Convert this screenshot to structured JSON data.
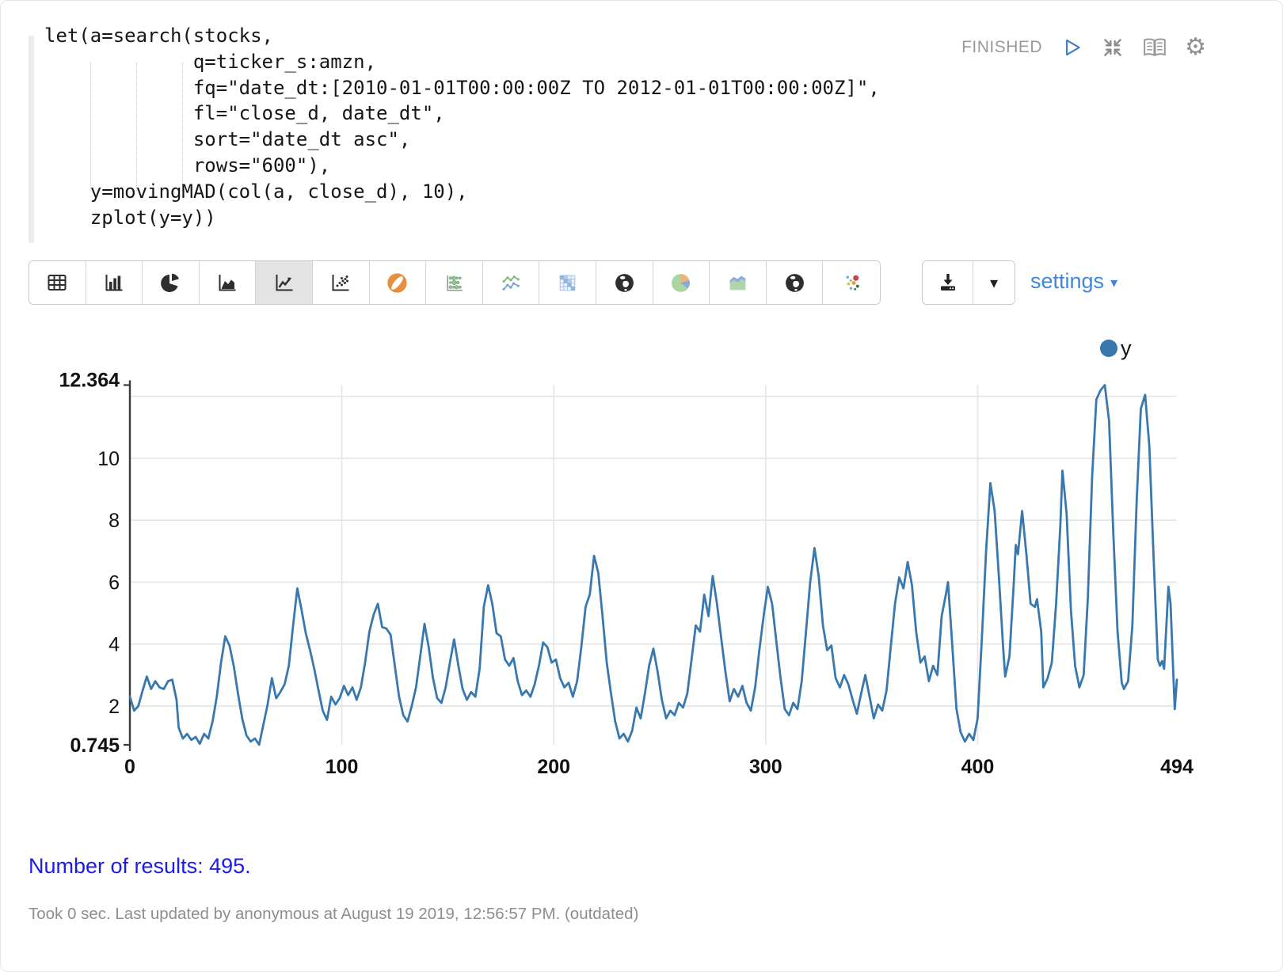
{
  "paragraph": {
    "code": "let(a=search(stocks,\n             q=ticker_s:amzn,\n             fq=\"date_dt:[2010-01-01T00:00:00Z TO 2012-01-01T00:00:00Z]\",\n             fl=\"close_d, date_dt\",\n             sort=\"date_dt asc\",\n             rows=\"600\"),\n    y=movingMAD(col(a, close_d), 10),\n    zplot(y=y))",
    "status": "FINISHED",
    "control_icons": [
      "play-icon",
      "compress-icon",
      "book-icon",
      "gear-icon"
    ]
  },
  "toolbar": {
    "chart_types": [
      {
        "name": "table",
        "selected": false
      },
      {
        "name": "bar-chart",
        "selected": false
      },
      {
        "name": "pie-chart",
        "selected": false
      },
      {
        "name": "area-chart",
        "selected": false
      },
      {
        "name": "line-chart",
        "selected": true
      },
      {
        "name": "scatter-chart",
        "selected": false
      },
      {
        "name": "globe-orange",
        "selected": false
      },
      {
        "name": "bubble-matrix",
        "selected": false
      },
      {
        "name": "multi-line",
        "selected": false
      },
      {
        "name": "heatmap",
        "selected": false
      },
      {
        "name": "globe-black",
        "selected": false
      },
      {
        "name": "pie-color",
        "selected": false
      },
      {
        "name": "area-color",
        "selected": false
      },
      {
        "name": "globe-black-2",
        "selected": false
      },
      {
        "name": "scatter-color",
        "selected": false
      }
    ],
    "download_icon": "download-icon",
    "download_caret": "▾",
    "settings_label": "settings",
    "settings_caret": "▾"
  },
  "chart_data": {
    "type": "line",
    "title": "",
    "xlabel": "",
    "ylabel": "",
    "xlim": [
      0,
      494
    ],
    "ylim": [
      0.745,
      12.364
    ],
    "x_gridlines": [
      100,
      200,
      300,
      400
    ],
    "y_gridlines": [
      2,
      4,
      6,
      8,
      10,
      12
    ],
    "xticks": [
      {
        "v": 0,
        "label": "0",
        "bold": true
      },
      {
        "v": 100,
        "label": "100",
        "bold": true
      },
      {
        "v": 200,
        "label": "200",
        "bold": true
      },
      {
        "v": 300,
        "label": "300",
        "bold": true
      },
      {
        "v": 400,
        "label": "400",
        "bold": true
      },
      {
        "v": 494,
        "label": "494",
        "bold": true
      }
    ],
    "yticks": [
      {
        "v": 12.364,
        "label": "12.364",
        "bold": true,
        "dy": 2
      },
      {
        "v": 10,
        "label": "10",
        "bold": false,
        "dy": 9
      },
      {
        "v": 8,
        "label": "8",
        "bold": false,
        "dy": 9
      },
      {
        "v": 6,
        "label": "6",
        "bold": false,
        "dy": 9
      },
      {
        "v": 4,
        "label": "4",
        "bold": false,
        "dy": 9
      },
      {
        "v": 2,
        "label": "2",
        "bold": false,
        "dy": 9
      },
      {
        "v": 0.745,
        "label": "0.745",
        "bold": true,
        "dy": 9
      }
    ],
    "legend": {
      "label": "y",
      "position": "top-right"
    },
    "series": [
      {
        "name": "y",
        "color": "#3878af",
        "points": [
          [
            0,
            2.3
          ],
          [
            2,
            1.85
          ],
          [
            4,
            2.0
          ],
          [
            6,
            2.5
          ],
          [
            8,
            2.95
          ],
          [
            10,
            2.55
          ],
          [
            12,
            2.8
          ],
          [
            14,
            2.6
          ],
          [
            16,
            2.55
          ],
          [
            18,
            2.8
          ],
          [
            20,
            2.85
          ],
          [
            22,
            2.2
          ],
          [
            23,
            1.3
          ],
          [
            25,
            0.95
          ],
          [
            27,
            1.1
          ],
          [
            29,
            0.9
          ],
          [
            31,
            1.0
          ],
          [
            33,
            0.78
          ],
          [
            35,
            1.1
          ],
          [
            37,
            0.95
          ],
          [
            39,
            1.5
          ],
          [
            41,
            2.3
          ],
          [
            43,
            3.4
          ],
          [
            45,
            4.25
          ],
          [
            47,
            3.95
          ],
          [
            49,
            3.3
          ],
          [
            51,
            2.4
          ],
          [
            53,
            1.6
          ],
          [
            55,
            1.05
          ],
          [
            57,
            0.85
          ],
          [
            59,
            0.95
          ],
          [
            61,
            0.75
          ],
          [
            63,
            1.4
          ],
          [
            65,
            2.05
          ],
          [
            67,
            2.9
          ],
          [
            69,
            2.25
          ],
          [
            71,
            2.45
          ],
          [
            73,
            2.7
          ],
          [
            75,
            3.3
          ],
          [
            77,
            4.6
          ],
          [
            79,
            5.8
          ],
          [
            81,
            5.1
          ],
          [
            83,
            4.35
          ],
          [
            85,
            3.8
          ],
          [
            87,
            3.2
          ],
          [
            89,
            2.5
          ],
          [
            91,
            1.85
          ],
          [
            93,
            1.55
          ],
          [
            95,
            2.3
          ],
          [
            97,
            2.05
          ],
          [
            99,
            2.25
          ],
          [
            101,
            2.65
          ],
          [
            103,
            2.35
          ],
          [
            105,
            2.6
          ],
          [
            107,
            2.2
          ],
          [
            109,
            2.6
          ],
          [
            111,
            3.4
          ],
          [
            113,
            4.4
          ],
          [
            115,
            4.95
          ],
          [
            117,
            5.3
          ],
          [
            119,
            4.55
          ],
          [
            121,
            4.5
          ],
          [
            123,
            4.3
          ],
          [
            125,
            3.3
          ],
          [
            127,
            2.3
          ],
          [
            129,
            1.7
          ],
          [
            131,
            1.5
          ],
          [
            133,
            2.0
          ],
          [
            135,
            2.6
          ],
          [
            137,
            3.6
          ],
          [
            139,
            4.65
          ],
          [
            141,
            3.9
          ],
          [
            143,
            2.9
          ],
          [
            145,
            2.25
          ],
          [
            147,
            2.1
          ],
          [
            149,
            2.6
          ],
          [
            151,
            3.4
          ],
          [
            153,
            4.15
          ],
          [
            155,
            3.3
          ],
          [
            157,
            2.55
          ],
          [
            159,
            2.2
          ],
          [
            161,
            2.45
          ],
          [
            163,
            2.3
          ],
          [
            165,
            3.2
          ],
          [
            167,
            5.2
          ],
          [
            169,
            5.9
          ],
          [
            171,
            5.3
          ],
          [
            173,
            4.35
          ],
          [
            175,
            4.25
          ],
          [
            177,
            3.5
          ],
          [
            179,
            3.3
          ],
          [
            181,
            3.55
          ],
          [
            183,
            2.8
          ],
          [
            185,
            2.35
          ],
          [
            187,
            2.5
          ],
          [
            189,
            2.3
          ],
          [
            191,
            2.7
          ],
          [
            193,
            3.3
          ],
          [
            195,
            4.05
          ],
          [
            197,
            3.9
          ],
          [
            199,
            3.4
          ],
          [
            201,
            3.5
          ],
          [
            203,
            2.9
          ],
          [
            205,
            2.6
          ],
          [
            207,
            2.75
          ],
          [
            209,
            2.3
          ],
          [
            211,
            2.8
          ],
          [
            213,
            3.9
          ],
          [
            215,
            5.2
          ],
          [
            217,
            5.6
          ],
          [
            219,
            6.85
          ],
          [
            221,
            6.3
          ],
          [
            223,
            4.9
          ],
          [
            225,
            3.4
          ],
          [
            227,
            2.4
          ],
          [
            229,
            1.5
          ],
          [
            231,
            0.95
          ],
          [
            233,
            1.1
          ],
          [
            235,
            0.85
          ],
          [
            237,
            1.2
          ],
          [
            239,
            1.95
          ],
          [
            241,
            1.6
          ],
          [
            243,
            2.4
          ],
          [
            245,
            3.3
          ],
          [
            247,
            3.85
          ],
          [
            249,
            3.1
          ],
          [
            251,
            2.2
          ],
          [
            253,
            1.6
          ],
          [
            255,
            1.85
          ],
          [
            257,
            1.7
          ],
          [
            259,
            2.1
          ],
          [
            261,
            1.95
          ],
          [
            263,
            2.4
          ],
          [
            265,
            3.5
          ],
          [
            267,
            4.6
          ],
          [
            269,
            4.4
          ],
          [
            271,
            5.6
          ],
          [
            273,
            4.9
          ],
          [
            275,
            6.2
          ],
          [
            277,
            5.3
          ],
          [
            279,
            4.2
          ],
          [
            281,
            3.1
          ],
          [
            283,
            2.15
          ],
          [
            285,
            2.55
          ],
          [
            287,
            2.3
          ],
          [
            289,
            2.65
          ],
          [
            291,
            2.1
          ],
          [
            293,
            1.85
          ],
          [
            295,
            2.6
          ],
          [
            297,
            3.8
          ],
          [
            299,
            4.9
          ],
          [
            301,
            5.85
          ],
          [
            303,
            5.3
          ],
          [
            305,
            4.1
          ],
          [
            307,
            2.9
          ],
          [
            309,
            1.9
          ],
          [
            311,
            1.7
          ],
          [
            313,
            2.1
          ],
          [
            315,
            1.9
          ],
          [
            317,
            2.8
          ],
          [
            319,
            4.4
          ],
          [
            321,
            6.0
          ],
          [
            323,
            7.1
          ],
          [
            325,
            6.2
          ],
          [
            327,
            4.6
          ],
          [
            329,
            3.8
          ],
          [
            331,
            3.95
          ],
          [
            333,
            2.9
          ],
          [
            335,
            2.6
          ],
          [
            337,
            3.0
          ],
          [
            339,
            2.7
          ],
          [
            341,
            2.2
          ],
          [
            343,
            1.75
          ],
          [
            345,
            2.4
          ],
          [
            347,
            3.0
          ],
          [
            349,
            2.3
          ],
          [
            351,
            1.6
          ],
          [
            353,
            2.05
          ],
          [
            355,
            1.85
          ],
          [
            357,
            2.5
          ],
          [
            359,
            3.9
          ],
          [
            361,
            5.3
          ],
          [
            363,
            6.15
          ],
          [
            365,
            5.8
          ],
          [
            367,
            6.65
          ],
          [
            369,
            5.9
          ],
          [
            371,
            4.4
          ],
          [
            373,
            3.4
          ],
          [
            375,
            3.6
          ],
          [
            377,
            2.8
          ],
          [
            379,
            3.3
          ],
          [
            381,
            3.0
          ],
          [
            383,
            4.9
          ],
          [
            385,
            5.6
          ],
          [
            386,
            6.0
          ],
          [
            388,
            4.0
          ],
          [
            390,
            1.9
          ],
          [
            392,
            1.15
          ],
          [
            394,
            0.85
          ],
          [
            396,
            1.1
          ],
          [
            398,
            0.9
          ],
          [
            400,
            1.6
          ],
          [
            402,
            4.2
          ],
          [
            404,
            7.0
          ],
          [
            406,
            9.2
          ],
          [
            408,
            8.3
          ],
          [
            410,
            6.2
          ],
          [
            412,
            3.9
          ],
          [
            413,
            2.95
          ],
          [
            415,
            3.6
          ],
          [
            417,
            5.9
          ],
          [
            418,
            7.2
          ],
          [
            419,
            6.9
          ],
          [
            421,
            8.3
          ],
          [
            423,
            6.9
          ],
          [
            425,
            5.3
          ],
          [
            427,
            5.2
          ],
          [
            428,
            5.45
          ],
          [
            430,
            4.4
          ],
          [
            431,
            2.6
          ],
          [
            433,
            2.9
          ],
          [
            435,
            3.4
          ],
          [
            437,
            5.3
          ],
          [
            439,
            7.8
          ],
          [
            440,
            9.6
          ],
          [
            442,
            8.2
          ],
          [
            444,
            5.1
          ],
          [
            446,
            3.3
          ],
          [
            448,
            2.6
          ],
          [
            450,
            3.0
          ],
          [
            452,
            5.5
          ],
          [
            454,
            9.4
          ],
          [
            456,
            11.9
          ],
          [
            458,
            12.2
          ],
          [
            460,
            12.364
          ],
          [
            462,
            11.2
          ],
          [
            464,
            7.6
          ],
          [
            466,
            4.4
          ],
          [
            468,
            2.75
          ],
          [
            469,
            2.55
          ],
          [
            471,
            2.8
          ],
          [
            473,
            4.6
          ],
          [
            475,
            8.6
          ],
          [
            477,
            11.6
          ],
          [
            479,
            12.05
          ],
          [
            481,
            10.4
          ],
          [
            483,
            6.8
          ],
          [
            485,
            3.5
          ],
          [
            486,
            3.3
          ],
          [
            487,
            3.45
          ],
          [
            488,
            3.2
          ],
          [
            490,
            5.85
          ],
          [
            491,
            5.3
          ],
          [
            493,
            1.9
          ],
          [
            494,
            2.85
          ]
        ]
      }
    ]
  },
  "results": {
    "text": "Number of results: 495."
  },
  "footer": {
    "text": "Took 0 sec. Last updated by anonymous at August 19 2019, 12:56:57 PM. (outdated)"
  },
  "colors": {
    "line": "#3878af",
    "grid": "#e4e4e4",
    "axis": "#3a3a3a",
    "status_text": "#9a9a9a",
    "settings_link": "#4186d8",
    "results_text": "#1b1bee",
    "footer_text": "#8e8e8e"
  }
}
